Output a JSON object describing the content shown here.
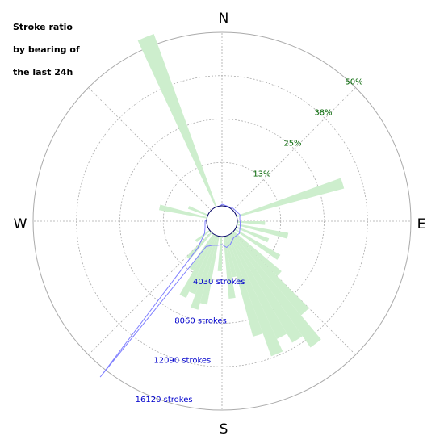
{
  "title_lines": [
    "Stroke ratio",
    "by bearing of",
    "the last 24h"
  ],
  "compass": {
    "n": "N",
    "e": "E",
    "s": "S",
    "w": "W"
  },
  "colors": {
    "ratio_fill": "#cdeecd",
    "strokes_line": "#8080ff",
    "grid": "#aaaaaa",
    "pct_text": "#006400",
    "strokes_text": "#0000cc"
  },
  "chart_data": {
    "type": "polar",
    "ratio_ticks": [
      "13%",
      "25%",
      "38%",
      "50%"
    ],
    "ratio_max_pct": 50,
    "stroke_ticks": [
      "4030 strokes",
      "8060 strokes",
      "12090 strokes",
      "16120 strokes"
    ],
    "strokes_max": 16120,
    "sector_width_deg": 5,
    "ratio_series": {
      "name": "",
      "sectors": [
        {
          "bearing_deg": 337.5,
          "value_pct": 53
        },
        {
          "bearing_deg": 282.5,
          "value_pct": 14
        },
        {
          "bearing_deg": 292.5,
          "value_pct": 6
        },
        {
          "bearing_deg": 72.5,
          "value_pct": 32
        },
        {
          "bearing_deg": 92.5,
          "value_pct": 8
        },
        {
          "bearing_deg": 102.5,
          "value_pct": 15
        },
        {
          "bearing_deg": 112.5,
          "value_pct": 10
        },
        {
          "bearing_deg": 122.5,
          "value_pct": 15
        },
        {
          "bearing_deg": 132.5,
          "value_pct": 18
        },
        {
          "bearing_deg": 137.5,
          "value_pct": 31
        },
        {
          "bearing_deg": 142.5,
          "value_pct": 40
        },
        {
          "bearing_deg": 147.5,
          "value_pct": 36
        },
        {
          "bearing_deg": 152.5,
          "value_pct": 33
        },
        {
          "bearing_deg": 157.5,
          "value_pct": 37
        },
        {
          "bearing_deg": 162.5,
          "value_pct": 30
        },
        {
          "bearing_deg": 167.5,
          "value_pct": 12
        },
        {
          "bearing_deg": 172.5,
          "value_pct": 18
        },
        {
          "bearing_deg": 182.5,
          "value_pct": 10
        },
        {
          "bearing_deg": 192.5,
          "value_pct": 20
        },
        {
          "bearing_deg": 197.5,
          "value_pct": 22
        },
        {
          "bearing_deg": 202.5,
          "value_pct": 18
        },
        {
          "bearing_deg": 207.5,
          "value_pct": 20
        },
        {
          "bearing_deg": 212.5,
          "value_pct": 12
        },
        {
          "bearing_deg": 222.5,
          "value_pct": 10
        },
        {
          "bearing_deg": 232.5,
          "value_pct": 5
        }
      ]
    },
    "strokes_series": {
      "name": "",
      "points": [
        {
          "bearing_deg": 0,
          "value": 0
        },
        {
          "bearing_deg": 40,
          "value": 0
        },
        {
          "bearing_deg": 70,
          "value": 200
        },
        {
          "bearing_deg": 80,
          "value": 100
        },
        {
          "bearing_deg": 100,
          "value": 150
        },
        {
          "bearing_deg": 125,
          "value": 400
        },
        {
          "bearing_deg": 145,
          "value": 300
        },
        {
          "bearing_deg": 160,
          "value": 700
        },
        {
          "bearing_deg": 170,
          "value": 900
        },
        {
          "bearing_deg": 180,
          "value": 600
        },
        {
          "bearing_deg": 190,
          "value": 700
        },
        {
          "bearing_deg": 200,
          "value": 800
        },
        {
          "bearing_deg": 212,
          "value": 1200
        },
        {
          "bearing_deg": 217,
          "value": 8000
        },
        {
          "bearing_deg": 218,
          "value": 16800
        },
        {
          "bearing_deg": 222,
          "value": 1800
        },
        {
          "bearing_deg": 235,
          "value": 400
        },
        {
          "bearing_deg": 250,
          "value": 100
        },
        {
          "bearing_deg": 270,
          "value": 0
        },
        {
          "bearing_deg": 360,
          "value": 0
        }
      ]
    }
  }
}
